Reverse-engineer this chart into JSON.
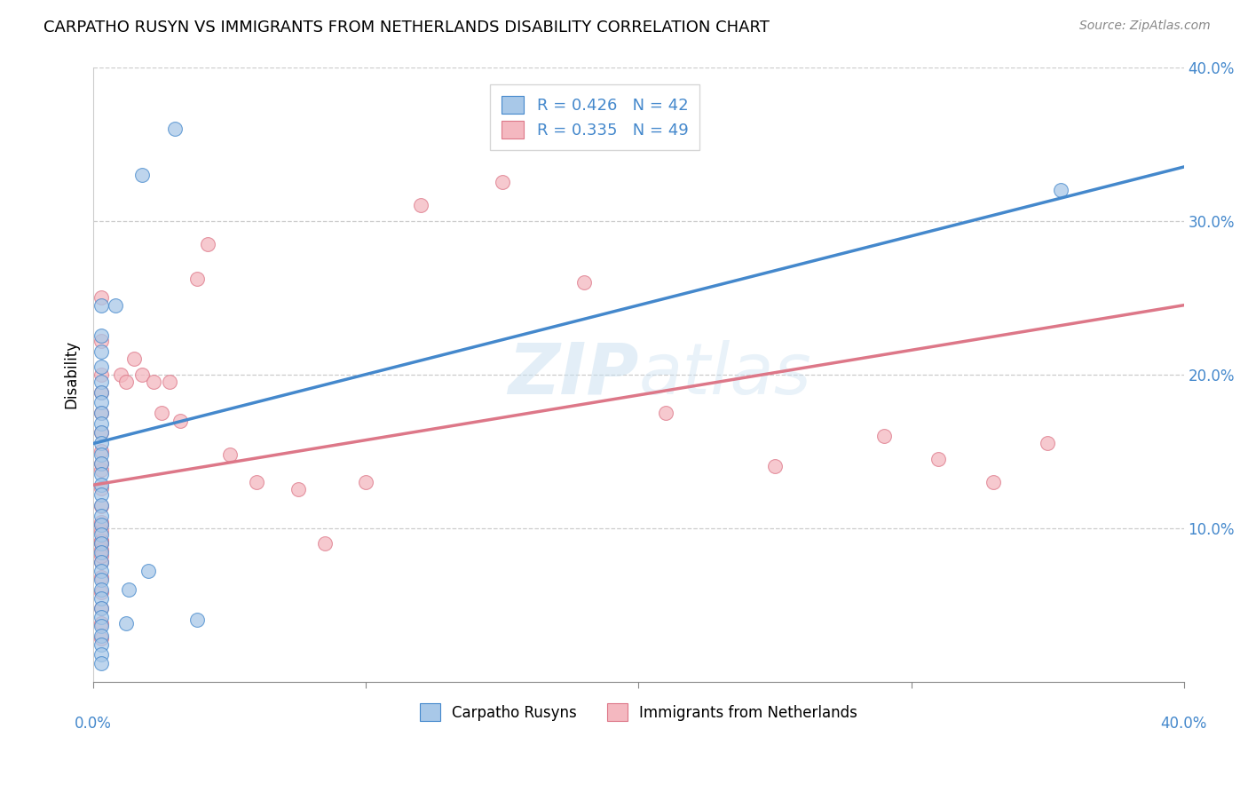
{
  "title": "CARPATHO RUSYN VS IMMIGRANTS FROM NETHERLANDS DISABILITY CORRELATION CHART",
  "source": "Source: ZipAtlas.com",
  "ylabel": "Disability",
  "xmin": 0.0,
  "xmax": 0.4,
  "ymin": 0.0,
  "ymax": 0.4,
  "yticks": [
    0.1,
    0.2,
    0.3,
    0.4
  ],
  "ytick_labels": [
    "10.0%",
    "20.0%",
    "30.0%",
    "40.0%"
  ],
  "blue_R": 0.426,
  "blue_N": 42,
  "pink_R": 0.335,
  "pink_N": 49,
  "blue_scatter_color": "#a8c8e8",
  "pink_scatter_color": "#f4b8c0",
  "blue_line_color": "#4488cc",
  "pink_line_color": "#dd7788",
  "blue_edge_color": "#4488cc",
  "pink_edge_color": "#dd7788",
  "tick_label_color": "#4488cc",
  "watermark_color": "#c8dff0",
  "legend_label_blue": "Carpatho Rusyns",
  "legend_label_pink": "Immigrants from Netherlands",
  "blue_line_start_y": 0.155,
  "blue_line_end_y": 0.335,
  "pink_line_start_y": 0.128,
  "pink_line_end_y": 0.245,
  "blue_scatter_x": [
    0.008,
    0.018,
    0.03,
    0.003,
    0.003,
    0.003,
    0.003,
    0.003,
    0.003,
    0.003,
    0.003,
    0.003,
    0.003,
    0.003,
    0.003,
    0.003,
    0.003,
    0.003,
    0.003,
    0.003,
    0.003,
    0.003,
    0.003,
    0.003,
    0.003,
    0.003,
    0.003,
    0.003,
    0.003,
    0.003,
    0.003,
    0.003,
    0.003,
    0.003,
    0.003,
    0.003,
    0.003,
    0.012,
    0.02,
    0.038,
    0.355,
    0.013
  ],
  "blue_scatter_y": [
    0.245,
    0.33,
    0.36,
    0.245,
    0.225,
    0.215,
    0.205,
    0.195,
    0.188,
    0.182,
    0.175,
    0.168,
    0.162,
    0.155,
    0.148,
    0.142,
    0.135,
    0.128,
    0.122,
    0.115,
    0.108,
    0.102,
    0.096,
    0.09,
    0.084,
    0.078,
    0.072,
    0.066,
    0.06,
    0.054,
    0.048,
    0.042,
    0.036,
    0.03,
    0.024,
    0.018,
    0.012,
    0.038,
    0.072,
    0.04,
    0.32,
    0.06
  ],
  "pink_scatter_x": [
    0.003,
    0.003,
    0.003,
    0.003,
    0.003,
    0.003,
    0.003,
    0.003,
    0.003,
    0.003,
    0.003,
    0.003,
    0.003,
    0.003,
    0.003,
    0.003,
    0.003,
    0.003,
    0.003,
    0.003,
    0.003,
    0.003,
    0.003,
    0.003,
    0.003,
    0.01,
    0.012,
    0.015,
    0.018,
    0.022,
    0.025,
    0.028,
    0.032,
    0.038,
    0.042,
    0.05,
    0.06,
    0.075,
    0.085,
    0.1,
    0.12,
    0.15,
    0.18,
    0.21,
    0.25,
    0.29,
    0.31,
    0.33,
    0.35
  ],
  "pink_scatter_y": [
    0.25,
    0.222,
    0.2,
    0.188,
    0.175,
    0.162,
    0.15,
    0.138,
    0.126,
    0.114,
    0.102,
    0.09,
    0.078,
    0.068,
    0.058,
    0.048,
    0.038,
    0.028,
    0.142,
    0.092,
    0.086,
    0.082,
    0.092,
    0.098,
    0.104,
    0.2,
    0.195,
    0.21,
    0.2,
    0.195,
    0.175,
    0.195,
    0.17,
    0.262,
    0.285,
    0.148,
    0.13,
    0.125,
    0.09,
    0.13,
    0.31,
    0.325,
    0.26,
    0.175,
    0.14,
    0.16,
    0.145,
    0.13,
    0.155
  ]
}
